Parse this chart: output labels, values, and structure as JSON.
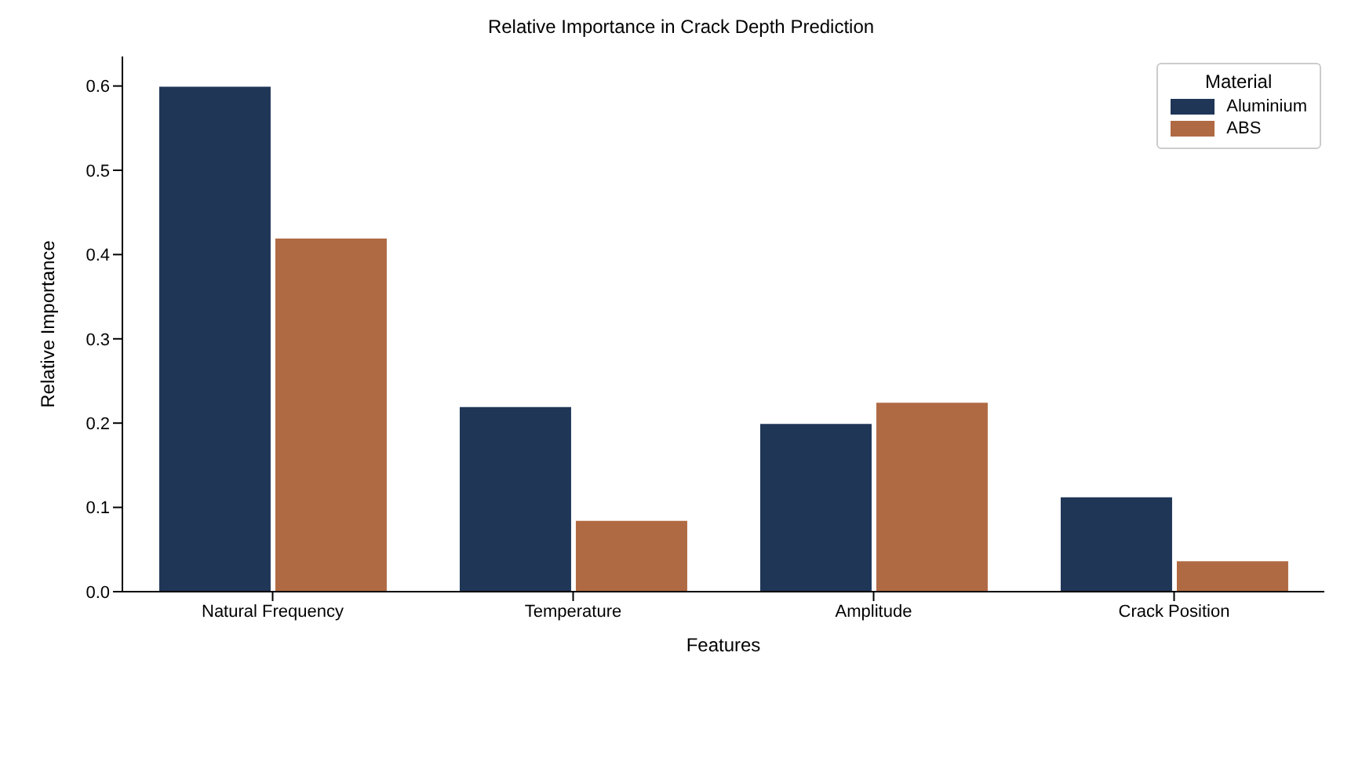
{
  "chart_data": {
    "type": "bar",
    "title": "Relative Importance in Crack Depth Prediction",
    "xlabel": "Features",
    "ylabel": "Relative Importance",
    "legend_title": "Material",
    "categories": [
      "Natural Frequency",
      "Temperature",
      "Amplitude",
      "Crack Position"
    ],
    "series": [
      {
        "name": "Aluminium",
        "color": "#1f3657",
        "values": [
          0.6,
          0.22,
          0.2,
          0.113
        ]
      },
      {
        "name": "ABS",
        "color": "#b06a43",
        "values": [
          0.42,
          0.085,
          0.225,
          0.037
        ]
      }
    ],
    "ylim": [
      0,
      0.635
    ],
    "yticks": [
      {
        "value": 0,
        "label": "0.0"
      },
      0.1,
      0.2,
      0.3,
      0.4,
      0.5,
      0.6
    ],
    "grid": false,
    "legend": "top right"
  }
}
